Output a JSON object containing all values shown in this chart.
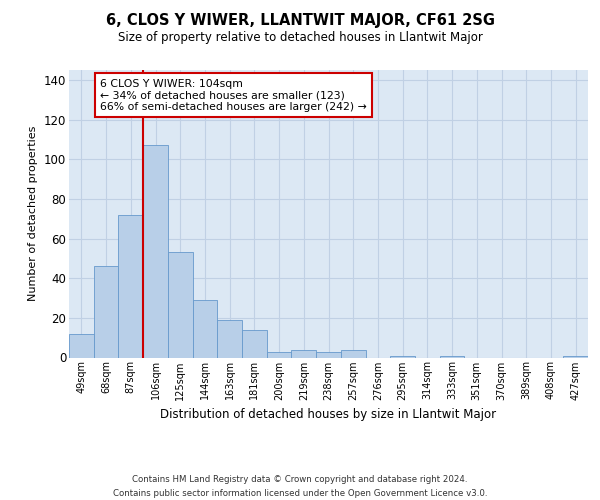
{
  "title": "6, CLOS Y WIWER, LLANTWIT MAJOR, CF61 2SG",
  "subtitle": "Size of property relative to detached houses in Llantwit Major",
  "xlabel": "Distribution of detached houses by size in Llantwit Major",
  "ylabel": "Number of detached properties",
  "categories": [
    "49sqm",
    "68sqm",
    "87sqm",
    "106sqm",
    "125sqm",
    "144sqm",
    "163sqm",
    "181sqm",
    "200sqm",
    "219sqm",
    "238sqm",
    "257sqm",
    "276sqm",
    "295sqm",
    "314sqm",
    "333sqm",
    "351sqm",
    "370sqm",
    "389sqm",
    "408sqm",
    "427sqm"
  ],
  "values": [
    12,
    46,
    72,
    107,
    53,
    29,
    19,
    14,
    3,
    4,
    3,
    4,
    0,
    1,
    0,
    1,
    0,
    0,
    0,
    0,
    1
  ],
  "bar_color": "#b8cfe8",
  "bar_edge_color": "#6699cc",
  "grid_color": "#c0d0e4",
  "bg_color": "#dce8f4",
  "annotation_box_text": "6 CLOS Y WIWER: 104sqm\n← 34% of detached houses are smaller (123)\n66% of semi-detached houses are larger (242) →",
  "annotation_box_color": "white",
  "annotation_box_edge_color": "#cc0000",
  "vertical_line_x": 2.5,
  "vertical_line_color": "#cc0000",
  "ylim": [
    0,
    145
  ],
  "yticks": [
    0,
    20,
    40,
    60,
    80,
    100,
    120,
    140
  ],
  "footer_line1": "Contains HM Land Registry data © Crown copyright and database right 2024.",
  "footer_line2": "Contains public sector information licensed under the Open Government Licence v3.0."
}
